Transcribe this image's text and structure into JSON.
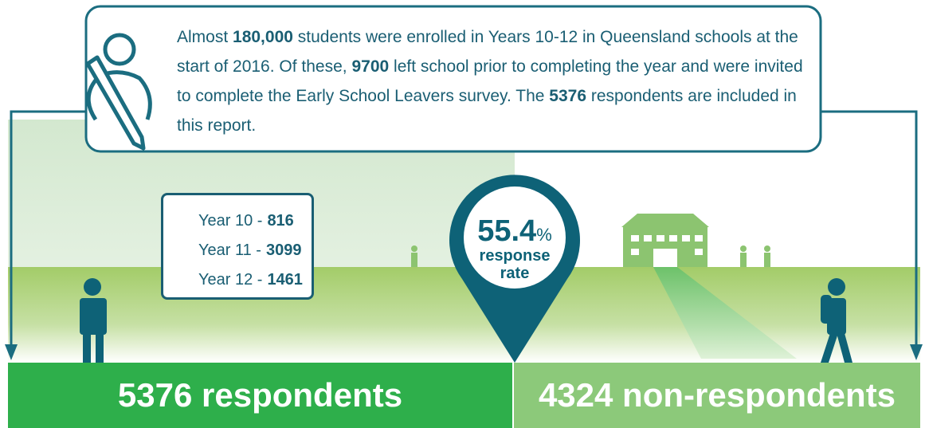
{
  "intro": {
    "segments": [
      {
        "text": "Almost ",
        "bold": false
      },
      {
        "text": "180,000",
        "bold": true
      },
      {
        "text": " students were enrolled in Years 10-12 in Queensland schools at the start of 2016. Of these, ",
        "bold": false
      },
      {
        "text": "9700",
        "bold": true
      },
      {
        "text": " left school prior to completing the year and were invited to complete the Early School Leavers survey. The ",
        "bold": false
      },
      {
        "text": "5376",
        "bold": true
      },
      {
        "text": " respondents are included in this report.",
        "bold": false
      }
    ]
  },
  "years": [
    {
      "label": "Year 10 -",
      "value": 816
    },
    {
      "label": "Year 11 -",
      "value": 3099
    },
    {
      "label": "Year 12 -",
      "value": 1461
    }
  ],
  "response": {
    "value": 55.4,
    "unit": "%",
    "label": "response rate"
  },
  "respondents": {
    "value": 5376,
    "label": "respondents"
  },
  "non_respondents": {
    "value": 4324,
    "label": "non-respondents"
  }
}
